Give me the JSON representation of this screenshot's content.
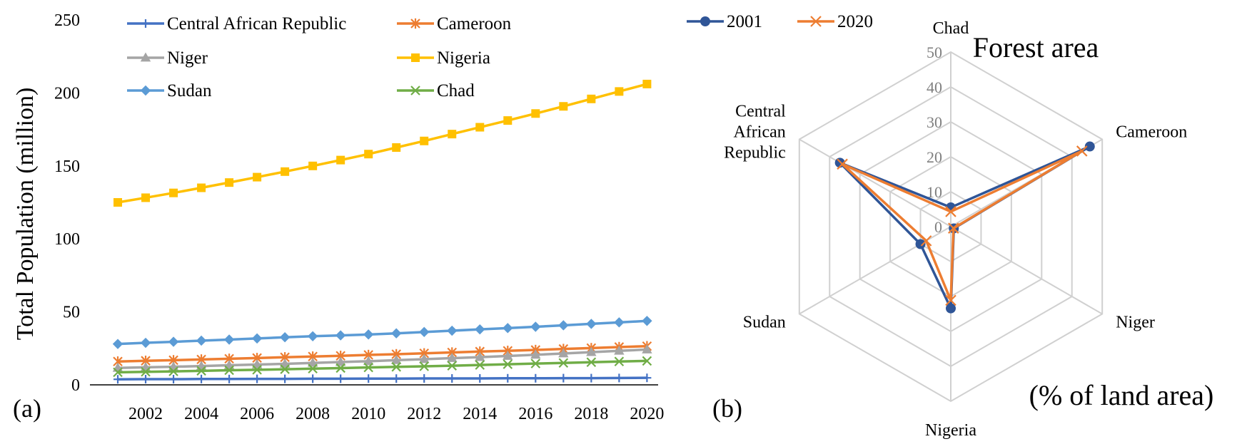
{
  "panels": {
    "a": "(a)",
    "b": "(b)"
  },
  "chart_data": [
    {
      "type": "line",
      "panel": "a",
      "title": "",
      "xlabel": "",
      "ylabel": "Total Population (million)",
      "x": [
        2001,
        2002,
        2003,
        2004,
        2005,
        2006,
        2007,
        2008,
        2009,
        2010,
        2011,
        2012,
        2013,
        2014,
        2015,
        2016,
        2017,
        2018,
        2019,
        2020
      ],
      "xticks": [
        2002,
        2004,
        2006,
        2008,
        2010,
        2012,
        2014,
        2016,
        2018,
        2020
      ],
      "xlim": [
        2000,
        2020.4
      ],
      "yticks": [
        0,
        50,
        100,
        150,
        200,
        250
      ],
      "ylim": [
        0,
        250
      ],
      "grid": false,
      "legend_position": "top",
      "series": [
        {
          "name": "Central African Republic",
          "color": "#4472C4",
          "marker": "plus",
          "values": [
            3.8,
            3.9,
            3.9,
            4.0,
            4.0,
            4.1,
            4.1,
            4.2,
            4.2,
            4.3,
            4.3,
            4.4,
            4.4,
            4.4,
            4.5,
            4.5,
            4.6,
            4.6,
            4.7,
            4.8
          ]
        },
        {
          "name": "Cameroon",
          "color": "#ED7D31",
          "marker": "star",
          "values": [
            16.0,
            16.5,
            16.9,
            17.4,
            17.9,
            18.4,
            18.9,
            19.4,
            19.9,
            20.5,
            21.0,
            21.6,
            22.2,
            22.8,
            23.3,
            23.9,
            24.6,
            25.2,
            25.9,
            26.5
          ]
        },
        {
          "name": "Niger",
          "color": "#A5A5A5",
          "marker": "triangle",
          "values": [
            11.6,
            12.0,
            12.4,
            12.9,
            13.4,
            13.9,
            14.4,
            15.0,
            15.6,
            16.2,
            16.9,
            17.6,
            18.3,
            19.0,
            19.8,
            20.6,
            21.5,
            22.4,
            23.3,
            24.2
          ]
        },
        {
          "name": "Nigeria",
          "color": "#FFC000",
          "marker": "square",
          "values": [
            125.0,
            128.2,
            131.5,
            135.0,
            138.6,
            142.3,
            146.1,
            150.0,
            154.0,
            158.1,
            162.6,
            167.1,
            171.8,
            176.5,
            181.1,
            185.9,
            190.8,
            195.9,
            201.0,
            206.1
          ]
        },
        {
          "name": "Sudan",
          "color": "#5B9BD5",
          "marker": "diamond",
          "values": [
            28.0,
            28.8,
            29.5,
            30.3,
            31.0,
            31.8,
            32.6,
            33.3,
            33.9,
            34.5,
            35.3,
            36.2,
            37.1,
            38.0,
            38.9,
            39.8,
            40.8,
            41.8,
            42.8,
            43.8
          ]
        },
        {
          "name": "Chad",
          "color": "#70AD47",
          "marker": "x",
          "values": [
            8.6,
            8.9,
            9.2,
            9.6,
            10.0,
            10.3,
            10.7,
            11.1,
            11.5,
            11.9,
            12.3,
            12.7,
            13.1,
            13.6,
            14.1,
            14.6,
            15.0,
            15.5,
            16.0,
            16.4
          ]
        }
      ]
    },
    {
      "type": "radar",
      "panel": "b",
      "title": "Forest area",
      "subtitle": "(% of land area)",
      "axes": [
        "Chad",
        "Cameroon",
        "Niger",
        "Nigeria",
        "Sudan",
        "Central African Republic"
      ],
      "axis_label_lines": [
        [
          "Chad"
        ],
        [
          "Cameroon"
        ],
        [
          "Niger"
        ],
        [
          "Nigeria"
        ],
        [
          "Sudan"
        ],
        [
          "Central",
          "African",
          "Republic"
        ]
      ],
      "rticks": [
        0,
        10,
        20,
        30,
        40,
        50
      ],
      "rlim": [
        0,
        50
      ],
      "legend_position": "top-left",
      "series": [
        {
          "name": "2001",
          "color": "#2F5597",
          "marker": "circle",
          "values": [
            5.5,
            45.9,
            1.0,
            23.4,
            10.0,
            36.6
          ]
        },
        {
          "name": "2020",
          "color": "#ED7D31",
          "marker": "x",
          "values": [
            4.3,
            43.3,
            0.9,
            21.1,
            8.1,
            35.8
          ]
        }
      ]
    }
  ]
}
